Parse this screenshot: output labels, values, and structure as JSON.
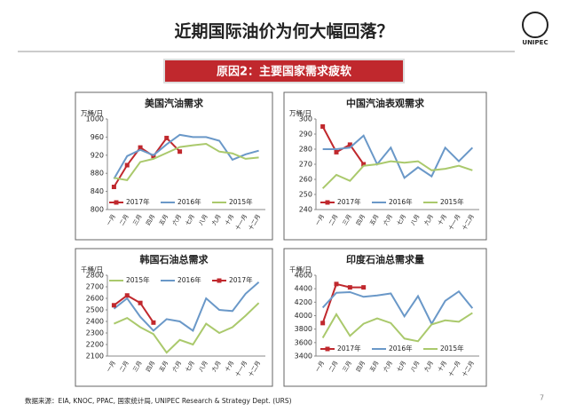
{
  "title": "近期国际油价为何大幅回落？",
  "subtitle": "原因2：主要国家需求疲软",
  "logo": "UNIPEC",
  "source": "数据来源：EIA, KNOC, PPAC, 国家统计局, UNIPEC Research & Strategy Dept. (URS)",
  "page_number": "7",
  "chart_data": [
    {
      "type": "line",
      "title": "美国汽油需求",
      "y_label": "万桶/日",
      "categories": [
        "一月",
        "二月",
        "三月",
        "四月",
        "五月",
        "六月",
        "七月",
        "八月",
        "九月",
        "十月",
        "十一月",
        "十二月"
      ],
      "ylim": [
        800,
        1000
      ],
      "yticks": [
        800,
        840,
        880,
        920,
        960,
        1000
      ],
      "legend": "lower center",
      "series": [
        {
          "name": "2017年",
          "color": "#c0282d",
          "marker": "square",
          "values": [
            850,
            898,
            937,
            918,
            958,
            928,
            null,
            null,
            null,
            null,
            null,
            null
          ]
        },
        {
          "name": "2016年",
          "color": "#6a98c8",
          "values": [
            868,
            918,
            932,
            920,
            944,
            965,
            960,
            960,
            952,
            910,
            922,
            930
          ]
        },
        {
          "name": "2015年",
          "color": "#aac96c",
          "values": [
            870,
            865,
            905,
            912,
            925,
            938,
            942,
            945,
            928,
            924,
            912,
            915
          ]
        }
      ]
    },
    {
      "type": "line",
      "title": "中国汽油表观需求",
      "y_label": "万桶/日",
      "categories": [
        "一月",
        "二月",
        "三月",
        "四月",
        "五月",
        "六月",
        "七月",
        "八月",
        "九月",
        "十月",
        "十一月",
        "十二月"
      ],
      "ylim": [
        240,
        300
      ],
      "yticks": [
        240,
        250,
        260,
        270,
        280,
        290,
        300
      ],
      "legend": "lower center",
      "series": [
        {
          "name": "2017年",
          "color": "#c0282d",
          "marker": "square",
          "values": [
            295,
            278,
            283,
            270,
            null,
            null,
            null,
            null,
            null,
            null,
            null,
            null
          ]
        },
        {
          "name": "2016年",
          "color": "#6a98c8",
          "values": [
            280,
            280,
            281,
            289,
            270,
            281,
            261,
            268,
            262,
            281,
            272,
            281
          ]
        },
        {
          "name": "2015年",
          "color": "#aac96c",
          "values": [
            254,
            263,
            259,
            269,
            270,
            272,
            271,
            272,
            266,
            267,
            269,
            266
          ]
        }
      ]
    },
    {
      "type": "line",
      "title": "韩国石油总需求",
      "y_label": "千桶/日",
      "categories": [
        "一月",
        "二月",
        "三月",
        "四月",
        "五月",
        "六月",
        "七月",
        "八月",
        "九月",
        "十月",
        "十一月",
        "十二月"
      ],
      "ylim": [
        2100,
        2800
      ],
      "yticks": [
        2100,
        2200,
        2300,
        2400,
        2500,
        2600,
        2700,
        2800
      ],
      "legend": "upper center",
      "series": [
        {
          "name": "2015年",
          "color": "#aac96c",
          "values": [
            2380,
            2430,
            2350,
            2290,
            2130,
            2240,
            2200,
            2380,
            2300,
            2350,
            2450,
            2560
          ]
        },
        {
          "name": "2016年",
          "color": "#6a98c8",
          "values": [
            2510,
            2600,
            2440,
            2320,
            2420,
            2400,
            2320,
            2600,
            2500,
            2490,
            2640,
            2740
          ]
        },
        {
          "name": "2017年",
          "color": "#c0282d",
          "marker": "square",
          "values": [
            2540,
            2625,
            2560,
            2390,
            null,
            null,
            null,
            null,
            null,
            null,
            null,
            null
          ]
        }
      ]
    },
    {
      "type": "line",
      "title": "印度石油总需求量",
      "y_label": "千桶/日",
      "categories": [
        "一月",
        "二月",
        "三月",
        "四月",
        "五月",
        "六月",
        "七月",
        "八月",
        "九月",
        "十月",
        "十一月",
        "十二月"
      ],
      "ylim": [
        3400,
        4600
      ],
      "yticks": [
        3400,
        3600,
        3800,
        4000,
        4200,
        4400,
        4600
      ],
      "legend": "lower center",
      "series": [
        {
          "name": "2017年",
          "color": "#c0282d",
          "marker": "square",
          "values": [
            3890,
            4470,
            4420,
            4420,
            null,
            null,
            null,
            null,
            null,
            null,
            null,
            null
          ]
        },
        {
          "name": "2016年",
          "color": "#6a98c8",
          "values": [
            4120,
            4340,
            4350,
            4280,
            4300,
            4330,
            3990,
            4290,
            3880,
            4220,
            4360,
            4110
          ]
        },
        {
          "name": "2015年",
          "color": "#aac96c",
          "values": [
            3670,
            4020,
            3700,
            3880,
            3960,
            3890,
            3660,
            3620,
            3870,
            3930,
            3910,
            4040
          ]
        }
      ]
    }
  ]
}
